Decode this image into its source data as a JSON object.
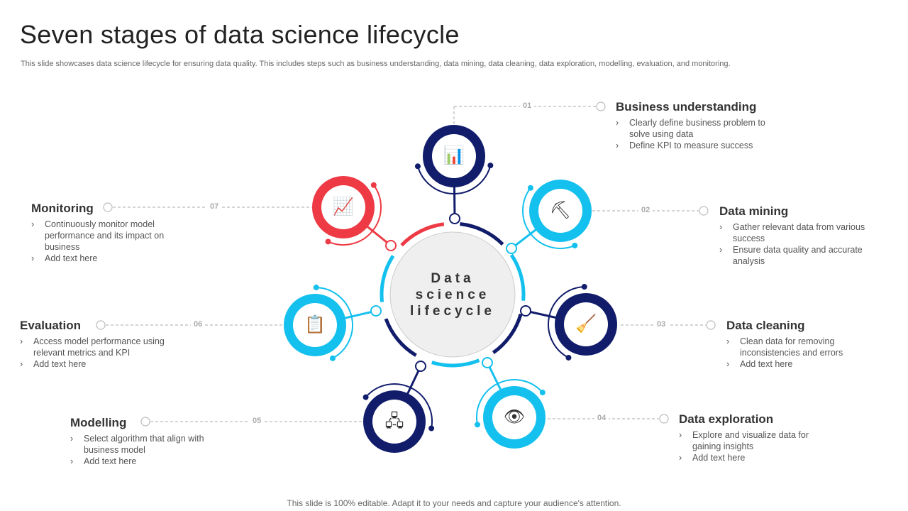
{
  "title": "Seven stages of data science lifecycle",
  "subtitle": "This slide showcases data science lifecycle for ensuring data quality. This includes steps such as business understanding, data mining, data cleaning, data exploration, modelling, evaluation, and monitoring.",
  "center_label": [
    "Data",
    "science",
    "lifecycle"
  ],
  "footer": "This slide is 100% editable. Adapt it to your needs and capture your audience's attention.",
  "colors": {
    "navy": "#111c6b",
    "cyan": "#14c0ee",
    "red": "#ee3a44"
  },
  "stages": [
    {
      "number": "01",
      "title": "Business understanding",
      "icon": "report-chart-icon",
      "color": "navy",
      "bullets": [
        "Clearly define business problem to solve using data",
        "Define KPI to measure success"
      ]
    },
    {
      "number": "02",
      "title": "Data mining",
      "icon": "database-pickaxe-icon",
      "color": "cyan",
      "bullets": [
        "Gather relevant data from various success",
        "Ensure data quality and accurate analysis"
      ]
    },
    {
      "number": "03",
      "title": "Data cleaning",
      "icon": "cleaning-bucket-icon",
      "color": "navy",
      "bullets": [
        "Clean data for removing inconsistencies and errors",
        "Add text here"
      ]
    },
    {
      "number": "04",
      "title": "Data exploration",
      "icon": "eye-search-gear-icon",
      "color": "cyan",
      "bullets": [
        "Explore and visualize data for gaining insights",
        "Add text here"
      ]
    },
    {
      "number": "05",
      "title": "Modelling",
      "icon": "hierarchy-monitor-icon",
      "color": "navy",
      "bullets": [
        "Select algorithm that align with business model",
        "Add text here"
      ]
    },
    {
      "number": "06",
      "title": "Evaluation",
      "icon": "checklist-icon",
      "color": "cyan",
      "bullets": [
        "Access model performance using relevant  metrics and KPI",
        "Add text here"
      ]
    },
    {
      "number": "07",
      "title": "Monitoring",
      "icon": "monitor-analysis-icon",
      "color": "red",
      "bullets": [
        "Continuously monitor model performance  and its impact on business",
        "Add text here"
      ]
    }
  ]
}
